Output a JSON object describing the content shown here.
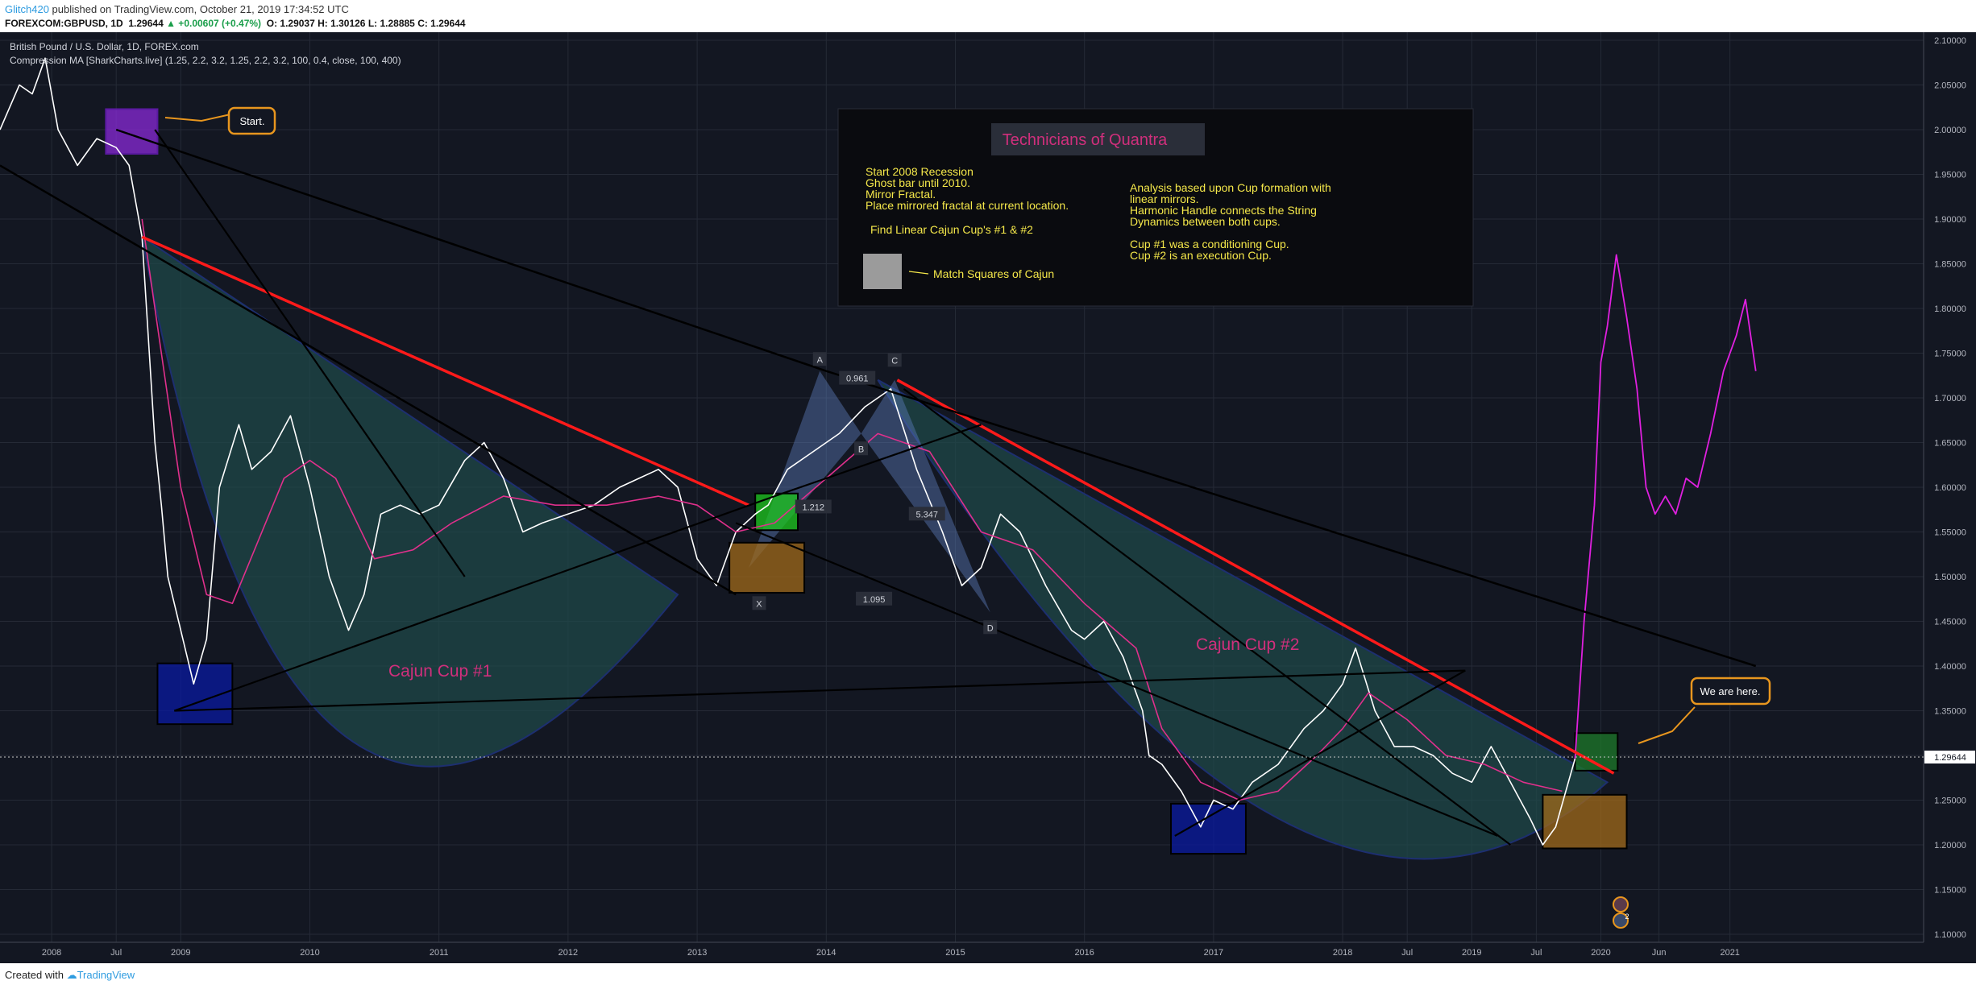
{
  "header": {
    "author": "Glitch420",
    "published": " published on TradingView.com, October 21, 2019 17:34:52 UTC",
    "symbol": "FOREXCOM:GBPUSD, 1D",
    "last": "1.29644",
    "change": "▲ +0.00607 (+0.47%)",
    "ohlc": "O: 1.29037 H: 1.30126 L: 1.28885 C: 1.29644"
  },
  "legend": {
    "instrument": "British Pound / U.S. Dollar, 1D, FOREX.com",
    "indicator": "Compression MA [SharkCharts.live] (1.25, 2.2, 3.2, 1.25, 2.2, 3.2, 100, 0.4, close, 100, 400)"
  },
  "info_box": {
    "title": "Technicians of Quantra",
    "left_lines": [
      "Start 2008 Recession",
      "Ghost bar until 2010.",
      "Mirror Fractal.",
      "Place mirrored fractal at current location."
    ],
    "left_sub": "Find Linear Cajun Cup's #1 & #2",
    "right_lines": [
      "Analysis based upon Cup formation with",
      "linear mirrors.",
      "Harmonic Handle connects the String",
      "Dynamics between both cups.",
      "",
      "Cup #1 was a conditioning Cup.",
      "Cup #2 is an execution Cup."
    ],
    "legend_label": "Match Squares of Cajun"
  },
  "annotations": {
    "start": "Start.",
    "here": "We are here.",
    "cup1": "Cajun Cup #1",
    "cup2": "Cajun Cup #2",
    "pt_a": "A",
    "pt_b": "B",
    "pt_c": "C",
    "pt_d": "D",
    "pt_x": "X",
    "r1": "0.961",
    "r2": "1.212",
    "r3": "5.347",
    "r4": "1.095",
    "price_tag": "1.29644",
    "event_count": "2"
  },
  "footer": {
    "created": "Created with ",
    "brand": "TradingView"
  },
  "colors": {
    "background": "#131722",
    "price": "#ffffff",
    "projection": "#e020e0",
    "ma": "#e0308c",
    "trend_red": "#ff1a1a",
    "trend_black": "#000000",
    "cup_fill": "#1e4a4a",
    "callout": "#e8961e",
    "cup_label": "#d02f7c",
    "info_text": "#f5e84a"
  },
  "chart_data": {
    "type": "line",
    "title": "British Pound / U.S. Dollar, 1D, FOREX.com",
    "y_axis": {
      "ticks": [
        "2.10000",
        "2.05000",
        "2.00000",
        "1.95000",
        "1.90000",
        "1.85000",
        "1.80000",
        "1.75000",
        "1.70000",
        "1.65000",
        "1.60000",
        "1.55000",
        "1.50000",
        "1.45000",
        "1.40000",
        "1.35000",
        "1.30000",
        "1.25000",
        "1.20000",
        "1.15000",
        "1.10000"
      ],
      "range": [
        1.1,
        2.1
      ]
    },
    "x_axis": {
      "ticks": [
        "2008",
        "Jul",
        "2009",
        "2010",
        "2011",
        "2012",
        "2013",
        "2014",
        "2015",
        "2016",
        "2017",
        "2018",
        "Jul",
        "2019",
        "Jul",
        "2020",
        "Jun",
        "2021"
      ],
      "tick_years": [
        2008.0,
        2008.5,
        2009.0,
        2010.0,
        2011.0,
        2012.0,
        2013.0,
        2014.0,
        2015.0,
        2016.0,
        2017.0,
        2018.0,
        2018.5,
        2019.0,
        2019.5,
        2020.0,
        2020.45,
        2021.0
      ],
      "range": [
        2007.6,
        2022.5
      ]
    },
    "series": [
      {
        "values_x": [
          2007.6,
          2007.75,
          2007.85,
          2007.95,
          2008.05,
          2008.2,
          2008.35,
          2008.5,
          2008.6,
          2008.7,
          2008.8,
          2008.85,
          2008.9,
          2009.0,
          2009.1,
          2009.2,
          2009.3,
          2009.45,
          2009.55,
          2009.7,
          2009.85,
          2010.0,
          2010.15,
          2010.3,
          2010.42,
          2010.55,
          2010.7,
          2010.85,
          2011.0,
          2011.2,
          2011.35,
          2011.5,
          2011.65,
          2011.8,
          2012.0,
          2012.2,
          2012.4,
          2012.55,
          2012.7,
          2012.85,
          2013.0,
          2013.15,
          2013.3,
          2013.45,
          2013.55,
          2013.7,
          2013.9,
          2014.1,
          2014.3,
          2014.5,
          2014.7,
          2014.9,
          2015.05,
          2015.2,
          2015.35,
          2015.5,
          2015.7,
          2015.9,
          2016.0,
          2016.15,
          2016.3,
          2016.45,
          2016.5,
          2016.6,
          2016.75,
          2016.9,
          2017.0,
          2017.15,
          2017.3,
          2017.5,
          2017.7,
          2017.85,
          2018.0,
          2018.1,
          2018.25,
          2018.4,
          2018.55,
          2018.7,
          2018.85,
          2019.0,
          2019.15,
          2019.3,
          2019.45,
          2019.55,
          2019.65,
          2019.8
        ],
        "values": [
          2.0,
          2.05,
          2.04,
          2.08,
          2.0,
          1.96,
          1.99,
          1.98,
          1.96,
          1.88,
          1.65,
          1.58,
          1.5,
          1.44,
          1.38,
          1.43,
          1.6,
          1.67,
          1.62,
          1.64,
          1.68,
          1.6,
          1.5,
          1.44,
          1.48,
          1.57,
          1.58,
          1.57,
          1.58,
          1.63,
          1.65,
          1.61,
          1.55,
          1.56,
          1.57,
          1.58,
          1.6,
          1.61,
          1.62,
          1.6,
          1.52,
          1.49,
          1.55,
          1.57,
          1.58,
          1.62,
          1.64,
          1.66,
          1.69,
          1.71,
          1.62,
          1.55,
          1.49,
          1.51,
          1.57,
          1.55,
          1.49,
          1.44,
          1.43,
          1.45,
          1.41,
          1.35,
          1.3,
          1.29,
          1.26,
          1.22,
          1.25,
          1.24,
          1.27,
          1.29,
          1.33,
          1.35,
          1.38,
          1.42,
          1.35,
          1.31,
          1.31,
          1.3,
          1.28,
          1.27,
          1.31,
          1.27,
          1.23,
          1.2,
          1.22,
          1.2964
        ],
        "color": "#ffffff"
      },
      {
        "values_x": [
          2019.8,
          2019.87,
          2019.95,
          2020.0,
          2020.05,
          2020.12,
          2020.2,
          2020.28,
          2020.35,
          2020.42,
          2020.5,
          2020.58,
          2020.66,
          2020.75,
          2020.85,
          2020.95,
          2021.05,
          2021.12,
          2021.2
        ],
        "values": [
          1.2964,
          1.45,
          1.58,
          1.74,
          1.78,
          1.86,
          1.79,
          1.71,
          1.6,
          1.57,
          1.59,
          1.57,
          1.61,
          1.6,
          1.66,
          1.73,
          1.77,
          1.81,
          1.73
        ],
        "color": "#e020e0"
      },
      {
        "values_x": [
          2008.7,
          2008.85,
          2009.0,
          2009.2,
          2009.4,
          2009.6,
          2009.8,
          2010.0,
          2010.2,
          2010.5,
          2010.8,
          2011.1,
          2011.5,
          2011.9,
          2012.3,
          2012.7,
          2013.0,
          2013.3,
          2013.6,
          2014.0,
          2014.4,
          2014.8,
          2015.2,
          2015.6,
          2016.0,
          2016.4,
          2016.6,
          2016.9,
          2017.2,
          2017.5,
          2017.8,
          2018.0,
          2018.2,
          2018.5,
          2018.8,
          2019.1,
          2019.4,
          2019.7
        ],
        "values": [
          1.9,
          1.75,
          1.6,
          1.48,
          1.47,
          1.54,
          1.61,
          1.63,
          1.61,
          1.52,
          1.53,
          1.56,
          1.59,
          1.58,
          1.58,
          1.59,
          1.58,
          1.55,
          1.56,
          1.61,
          1.66,
          1.64,
          1.55,
          1.53,
          1.47,
          1.42,
          1.33,
          1.27,
          1.25,
          1.26,
          1.3,
          1.33,
          1.37,
          1.34,
          1.3,
          1.29,
          1.27,
          1.26
        ],
        "color": "#e0308c"
      }
    ]
  }
}
